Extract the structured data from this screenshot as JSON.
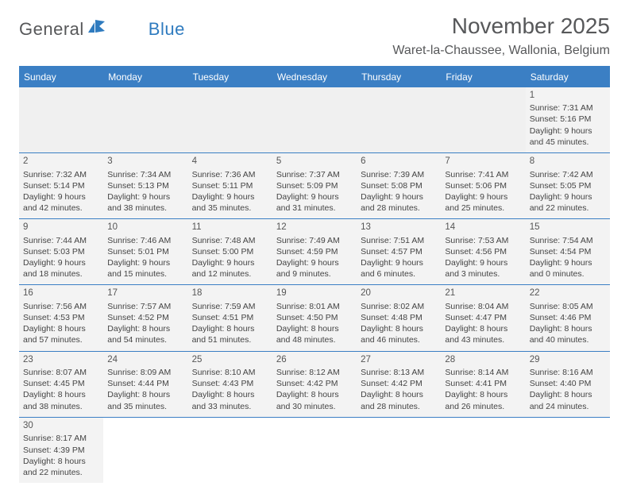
{
  "logo": {
    "word1": "General",
    "word2": "Blue"
  },
  "title": "November 2025",
  "location": "Waret-la-Chaussee, Wallonia, Belgium",
  "colors": {
    "header_bg": "#3b7fc4",
    "header_text": "#ffffff",
    "cell_bg": "#f3f3f3",
    "rule": "#3b7fc4",
    "logo_gray": "#57585a",
    "logo_blue": "#2f7bbf",
    "text": "#444444"
  },
  "weekdays": [
    "Sunday",
    "Monday",
    "Tuesday",
    "Wednesday",
    "Thursday",
    "Friday",
    "Saturday"
  ],
  "weeks": [
    [
      null,
      null,
      null,
      null,
      null,
      null,
      {
        "n": "1",
        "sr": "Sunrise: 7:31 AM",
        "ss": "Sunset: 5:16 PM",
        "d1": "Daylight: 9 hours",
        "d2": "and 45 minutes."
      }
    ],
    [
      {
        "n": "2",
        "sr": "Sunrise: 7:32 AM",
        "ss": "Sunset: 5:14 PM",
        "d1": "Daylight: 9 hours",
        "d2": "and 42 minutes."
      },
      {
        "n": "3",
        "sr": "Sunrise: 7:34 AM",
        "ss": "Sunset: 5:13 PM",
        "d1": "Daylight: 9 hours",
        "d2": "and 38 minutes."
      },
      {
        "n": "4",
        "sr": "Sunrise: 7:36 AM",
        "ss": "Sunset: 5:11 PM",
        "d1": "Daylight: 9 hours",
        "d2": "and 35 minutes."
      },
      {
        "n": "5",
        "sr": "Sunrise: 7:37 AM",
        "ss": "Sunset: 5:09 PM",
        "d1": "Daylight: 9 hours",
        "d2": "and 31 minutes."
      },
      {
        "n": "6",
        "sr": "Sunrise: 7:39 AM",
        "ss": "Sunset: 5:08 PM",
        "d1": "Daylight: 9 hours",
        "d2": "and 28 minutes."
      },
      {
        "n": "7",
        "sr": "Sunrise: 7:41 AM",
        "ss": "Sunset: 5:06 PM",
        "d1": "Daylight: 9 hours",
        "d2": "and 25 minutes."
      },
      {
        "n": "8",
        "sr": "Sunrise: 7:42 AM",
        "ss": "Sunset: 5:05 PM",
        "d1": "Daylight: 9 hours",
        "d2": "and 22 minutes."
      }
    ],
    [
      {
        "n": "9",
        "sr": "Sunrise: 7:44 AM",
        "ss": "Sunset: 5:03 PM",
        "d1": "Daylight: 9 hours",
        "d2": "and 18 minutes."
      },
      {
        "n": "10",
        "sr": "Sunrise: 7:46 AM",
        "ss": "Sunset: 5:01 PM",
        "d1": "Daylight: 9 hours",
        "d2": "and 15 minutes."
      },
      {
        "n": "11",
        "sr": "Sunrise: 7:48 AM",
        "ss": "Sunset: 5:00 PM",
        "d1": "Daylight: 9 hours",
        "d2": "and 12 minutes."
      },
      {
        "n": "12",
        "sr": "Sunrise: 7:49 AM",
        "ss": "Sunset: 4:59 PM",
        "d1": "Daylight: 9 hours",
        "d2": "and 9 minutes."
      },
      {
        "n": "13",
        "sr": "Sunrise: 7:51 AM",
        "ss": "Sunset: 4:57 PM",
        "d1": "Daylight: 9 hours",
        "d2": "and 6 minutes."
      },
      {
        "n": "14",
        "sr": "Sunrise: 7:53 AM",
        "ss": "Sunset: 4:56 PM",
        "d1": "Daylight: 9 hours",
        "d2": "and 3 minutes."
      },
      {
        "n": "15",
        "sr": "Sunrise: 7:54 AM",
        "ss": "Sunset: 4:54 PM",
        "d1": "Daylight: 9 hours",
        "d2": "and 0 minutes."
      }
    ],
    [
      {
        "n": "16",
        "sr": "Sunrise: 7:56 AM",
        "ss": "Sunset: 4:53 PM",
        "d1": "Daylight: 8 hours",
        "d2": "and 57 minutes."
      },
      {
        "n": "17",
        "sr": "Sunrise: 7:57 AM",
        "ss": "Sunset: 4:52 PM",
        "d1": "Daylight: 8 hours",
        "d2": "and 54 minutes."
      },
      {
        "n": "18",
        "sr": "Sunrise: 7:59 AM",
        "ss": "Sunset: 4:51 PM",
        "d1": "Daylight: 8 hours",
        "d2": "and 51 minutes."
      },
      {
        "n": "19",
        "sr": "Sunrise: 8:01 AM",
        "ss": "Sunset: 4:50 PM",
        "d1": "Daylight: 8 hours",
        "d2": "and 48 minutes."
      },
      {
        "n": "20",
        "sr": "Sunrise: 8:02 AM",
        "ss": "Sunset: 4:48 PM",
        "d1": "Daylight: 8 hours",
        "d2": "and 46 minutes."
      },
      {
        "n": "21",
        "sr": "Sunrise: 8:04 AM",
        "ss": "Sunset: 4:47 PM",
        "d1": "Daylight: 8 hours",
        "d2": "and 43 minutes."
      },
      {
        "n": "22",
        "sr": "Sunrise: 8:05 AM",
        "ss": "Sunset: 4:46 PM",
        "d1": "Daylight: 8 hours",
        "d2": "and 40 minutes."
      }
    ],
    [
      {
        "n": "23",
        "sr": "Sunrise: 8:07 AM",
        "ss": "Sunset: 4:45 PM",
        "d1": "Daylight: 8 hours",
        "d2": "and 38 minutes."
      },
      {
        "n": "24",
        "sr": "Sunrise: 8:09 AM",
        "ss": "Sunset: 4:44 PM",
        "d1": "Daylight: 8 hours",
        "d2": "and 35 minutes."
      },
      {
        "n": "25",
        "sr": "Sunrise: 8:10 AM",
        "ss": "Sunset: 4:43 PM",
        "d1": "Daylight: 8 hours",
        "d2": "and 33 minutes."
      },
      {
        "n": "26",
        "sr": "Sunrise: 8:12 AM",
        "ss": "Sunset: 4:42 PM",
        "d1": "Daylight: 8 hours",
        "d2": "and 30 minutes."
      },
      {
        "n": "27",
        "sr": "Sunrise: 8:13 AM",
        "ss": "Sunset: 4:42 PM",
        "d1": "Daylight: 8 hours",
        "d2": "and 28 minutes."
      },
      {
        "n": "28",
        "sr": "Sunrise: 8:14 AM",
        "ss": "Sunset: 4:41 PM",
        "d1": "Daylight: 8 hours",
        "d2": "and 26 minutes."
      },
      {
        "n": "29",
        "sr": "Sunrise: 8:16 AM",
        "ss": "Sunset: 4:40 PM",
        "d1": "Daylight: 8 hours",
        "d2": "and 24 minutes."
      }
    ],
    [
      {
        "n": "30",
        "sr": "Sunrise: 8:17 AM",
        "ss": "Sunset: 4:39 PM",
        "d1": "Daylight: 8 hours",
        "d2": "and 22 minutes."
      },
      null,
      null,
      null,
      null,
      null,
      null
    ]
  ]
}
